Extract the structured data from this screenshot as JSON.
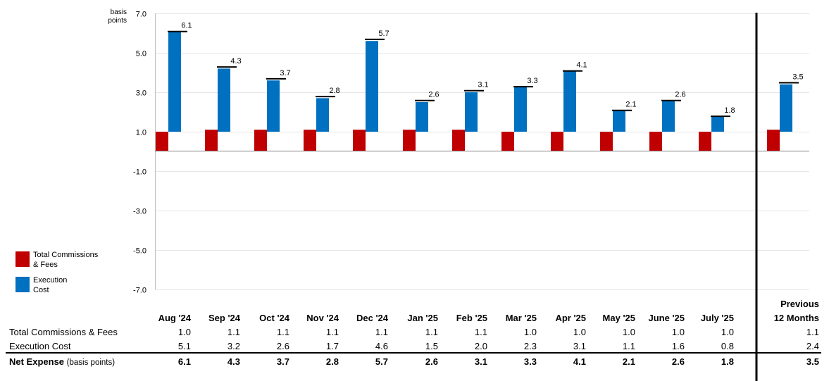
{
  "chart_data": {
    "type": "bar",
    "unit_label": [
      "basis",
      "points"
    ],
    "ylim": [
      -7,
      7
    ],
    "y_ticks": [
      "7.0",
      "5.0",
      "3.0",
      "1.0",
      "-1.0",
      "-3.0",
      "-5.0",
      "-7.0"
    ],
    "categories": [
      "Aug '24",
      "Sep '24",
      "Oct '24",
      "Nov '24",
      "Dec '24",
      "Jan '25",
      "Feb '25",
      "Mar '25",
      "Apr '25",
      "May '25",
      "June '25",
      "July '25",
      "Previous 12 Months"
    ],
    "series": [
      {
        "name": "Total Commissions & Fees",
        "color": "#C00000",
        "values": [
          1.0,
          1.1,
          1.1,
          1.1,
          1.1,
          1.1,
          1.1,
          1.0,
          1.0,
          1.0,
          1.0,
          1.0,
          1.1
        ]
      },
      {
        "name": "Execution Cost",
        "color": "#0070C0",
        "values": [
          5.1,
          3.2,
          2.6,
          1.7,
          4.6,
          1.5,
          2.0,
          2.3,
          3.1,
          1.1,
          1.6,
          0.8,
          2.4
        ]
      }
    ],
    "net_expense_labels": [
      "6.1",
      "4.3",
      "3.7",
      "2.8",
      "5.7",
      "2.6",
      "3.1",
      "3.3",
      "4.1",
      "2.1",
      "2.6",
      "1.8",
      "3.5"
    ],
    "grid": true
  },
  "legend": [
    {
      "line1": "Total Commissions",
      "line2": "& Fees",
      "color": "#C00000"
    },
    {
      "line1": "Execution",
      "line2": "Cost",
      "color": "#0070C0"
    }
  ],
  "table": {
    "headers": [
      "Aug '24",
      "Sep '24",
      "Oct '24",
      "Nov '24",
      "Dec '24",
      "Jan '25",
      "Feb '25",
      "Mar '25",
      "Apr '25",
      "May '25",
      "June '25",
      "July '25"
    ],
    "prev_header_line1": "Previous",
    "prev_header_line2": "12 Months",
    "rows": [
      {
        "label": "Total Commissions & Fees",
        "values": [
          "1.0",
          "1.1",
          "1.1",
          "1.1",
          "1.1",
          "1.1",
          "1.1",
          "1.0",
          "1.0",
          "1.0",
          "1.0",
          "1.0",
          "1.1"
        ]
      },
      {
        "label": "Execution Cost",
        "values": [
          "5.1",
          "3.2",
          "2.6",
          "1.7",
          "4.6",
          "1.5",
          "2.0",
          "2.3",
          "3.1",
          "1.1",
          "1.6",
          "0.8",
          "2.4"
        ]
      }
    ],
    "net_row": {
      "label": "Net Expense",
      "label_suffix": "(basis points)",
      "values": [
        "6.1",
        "4.3",
        "3.7",
        "2.8",
        "5.7",
        "2.6",
        "3.1",
        "3.3",
        "4.1",
        "2.1",
        "2.6",
        "1.8",
        "3.5"
      ]
    }
  }
}
